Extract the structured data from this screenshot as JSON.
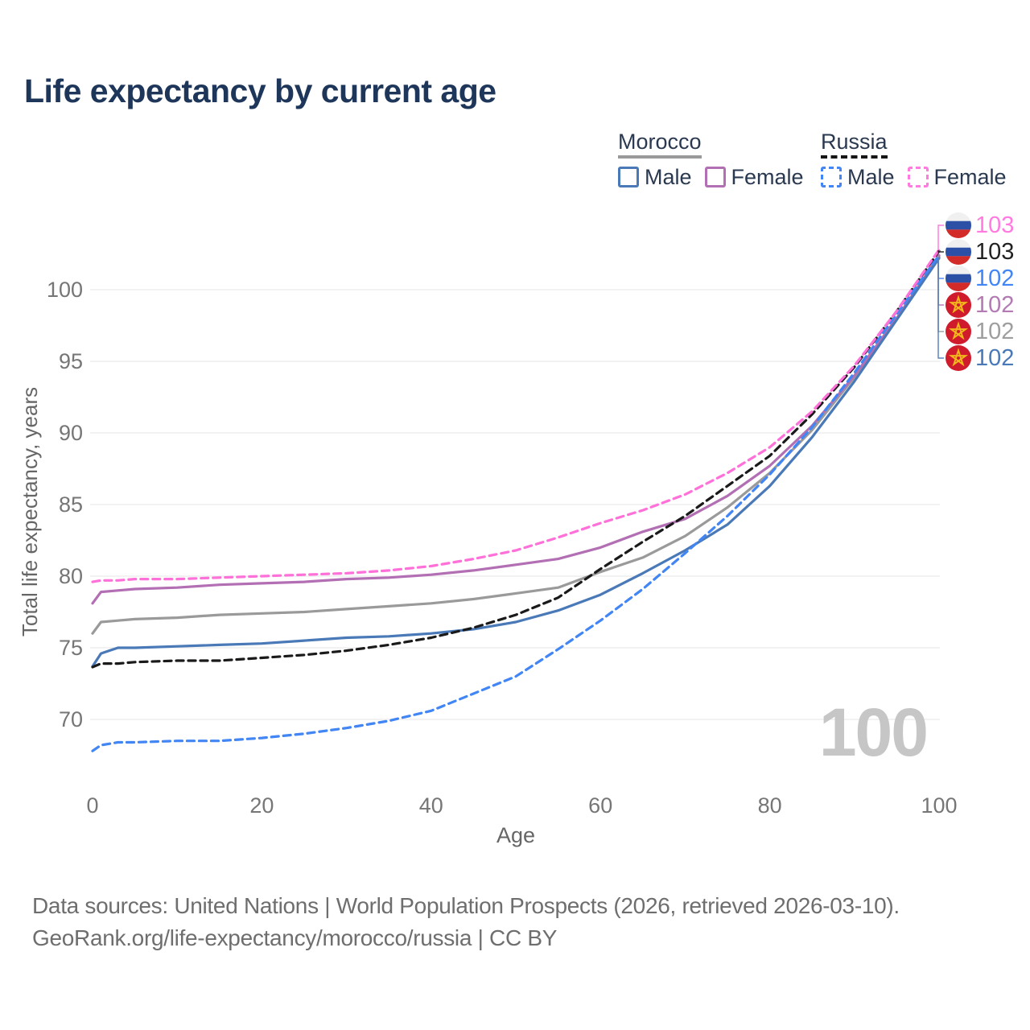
{
  "title": "Life expectancy by current age",
  "legend": {
    "groups": [
      {
        "name": "Morocco",
        "line_style": "solid",
        "underline_color": "#999999",
        "items": [
          {
            "label": "Male",
            "color": "#4a79b8"
          },
          {
            "label": "Female",
            "color": "#b36fb3"
          }
        ]
      },
      {
        "name": "Russia",
        "line_style": "dashed",
        "underline_color": "#151515",
        "items": [
          {
            "label": "Male",
            "color": "#4285f4"
          },
          {
            "label": "Female",
            "color": "#ff7be0"
          }
        ]
      }
    ]
  },
  "chart_data": {
    "type": "line",
    "title": "Life expectancy by current age",
    "xlabel": "Age",
    "ylabel": "Total life expectancy, years",
    "xlim": [
      0,
      100
    ],
    "ylim": [
      66,
      104
    ],
    "xticks": [
      0,
      20,
      40,
      60,
      80,
      100
    ],
    "yticks": [
      70,
      75,
      80,
      85,
      90,
      95,
      100
    ],
    "grid": "horizontal",
    "gridline_color": "#e9e9e9",
    "tick_label_color": "#767676",
    "axis_label_color": "#666666",
    "ages": [
      0,
      1,
      3,
      5,
      10,
      15,
      20,
      25,
      30,
      35,
      40,
      45,
      50,
      55,
      60,
      65,
      70,
      75,
      80,
      85,
      90,
      95,
      100
    ],
    "series": [
      {
        "id": "morocco-both",
        "name": "Morocco Both sexes",
        "country": "morocco",
        "sex": "both",
        "style": "solid",
        "color": "#9a9a9a",
        "values": [
          76.0,
          76.8,
          76.9,
          77.0,
          77.1,
          77.3,
          77.4,
          77.5,
          77.7,
          77.9,
          78.1,
          78.4,
          78.8,
          79.2,
          80.3,
          81.3,
          82.8,
          84.8,
          87.2,
          90.2,
          93.9,
          98.0,
          102.3
        ]
      },
      {
        "id": "morocco-female",
        "name": "Morocco Female",
        "country": "morocco",
        "sex": "female",
        "style": "solid",
        "color": "#b36fb3",
        "values": [
          78.1,
          78.9,
          79.0,
          79.1,
          79.2,
          79.4,
          79.5,
          79.6,
          79.8,
          79.9,
          80.1,
          80.4,
          80.8,
          81.2,
          82.0,
          83.1,
          84.0,
          85.6,
          87.7,
          90.5,
          94.0,
          98.0,
          102.4
        ]
      },
      {
        "id": "morocco-male",
        "name": "Morocco Male",
        "country": "morocco",
        "sex": "male",
        "style": "solid",
        "color": "#4a79b8",
        "values": [
          73.7,
          74.6,
          75.0,
          75.0,
          75.1,
          75.2,
          75.3,
          75.5,
          75.7,
          75.8,
          76.0,
          76.3,
          76.8,
          77.6,
          78.7,
          80.2,
          81.8,
          83.6,
          86.3,
          89.7,
          93.6,
          97.9,
          102.2
        ]
      },
      {
        "id": "russia-both",
        "name": "Russia Both sexes",
        "country": "russia",
        "sex": "both",
        "style": "dashed",
        "color": "#1a1a1a",
        "values": [
          73.65,
          73.9,
          73.9,
          74.0,
          74.1,
          74.1,
          74.3,
          74.5,
          74.8,
          75.2,
          75.7,
          76.4,
          77.3,
          78.5,
          80.5,
          82.4,
          84.2,
          86.3,
          88.4,
          91.3,
          94.6,
          98.5,
          102.7
        ]
      },
      {
        "id": "russia-male",
        "name": "Russia Male",
        "country": "russia",
        "sex": "male",
        "style": "dashed",
        "color": "#4285f4",
        "values": [
          67.8,
          68.2,
          68.4,
          68.4,
          68.5,
          68.5,
          68.7,
          69.0,
          69.4,
          69.9,
          70.6,
          71.8,
          73.0,
          74.9,
          76.9,
          79.1,
          81.6,
          84.2,
          87.1,
          90.4,
          94.2,
          98.3,
          102.4
        ]
      },
      {
        "id": "russia-female",
        "name": "Russia Female",
        "country": "russia",
        "sex": "female",
        "style": "dashed",
        "color": "#ff70d9",
        "values": [
          79.6,
          79.7,
          79.7,
          79.8,
          79.8,
          79.9,
          80.0,
          80.1,
          80.2,
          80.4,
          80.7,
          81.2,
          81.8,
          82.7,
          83.7,
          84.6,
          85.7,
          87.2,
          89.0,
          91.5,
          94.7,
          98.5,
          102.8
        ]
      }
    ],
    "end_labels": [
      {
        "series": "russia-female",
        "flag": "russia",
        "text": "103",
        "color": "#ff7be0"
      },
      {
        "series": "russia-both",
        "flag": "russia",
        "text": "103",
        "color": "#222222"
      },
      {
        "series": "russia-male",
        "flag": "russia",
        "text": "102",
        "color": "#4285f4"
      },
      {
        "series": "morocco-female",
        "flag": "morocco",
        "text": "102",
        "color": "#b37ab3"
      },
      {
        "series": "morocco-both",
        "flag": "morocco",
        "text": "102",
        "color": "#9e9e9e"
      },
      {
        "series": "morocco-male",
        "flag": "morocco",
        "text": "102",
        "color": "#4a79b8"
      }
    ],
    "flag_colors": {
      "russia_white": "#f0f0f1",
      "russia_blue": "#2d50a7",
      "russia_red": "#d32b28",
      "morocco_red": "#cf1b2b",
      "morocco_star": "#f2b71c"
    },
    "watermark": "100",
    "legend_position": "top-right"
  },
  "watermark": "100",
  "footer": {
    "line1": "Data sources: United Nations | World Population Prospects (2026, retrieved 2026-03-10).",
    "line2": "GeoRank.org/life-expectancy/morocco/russia | CC BY"
  }
}
